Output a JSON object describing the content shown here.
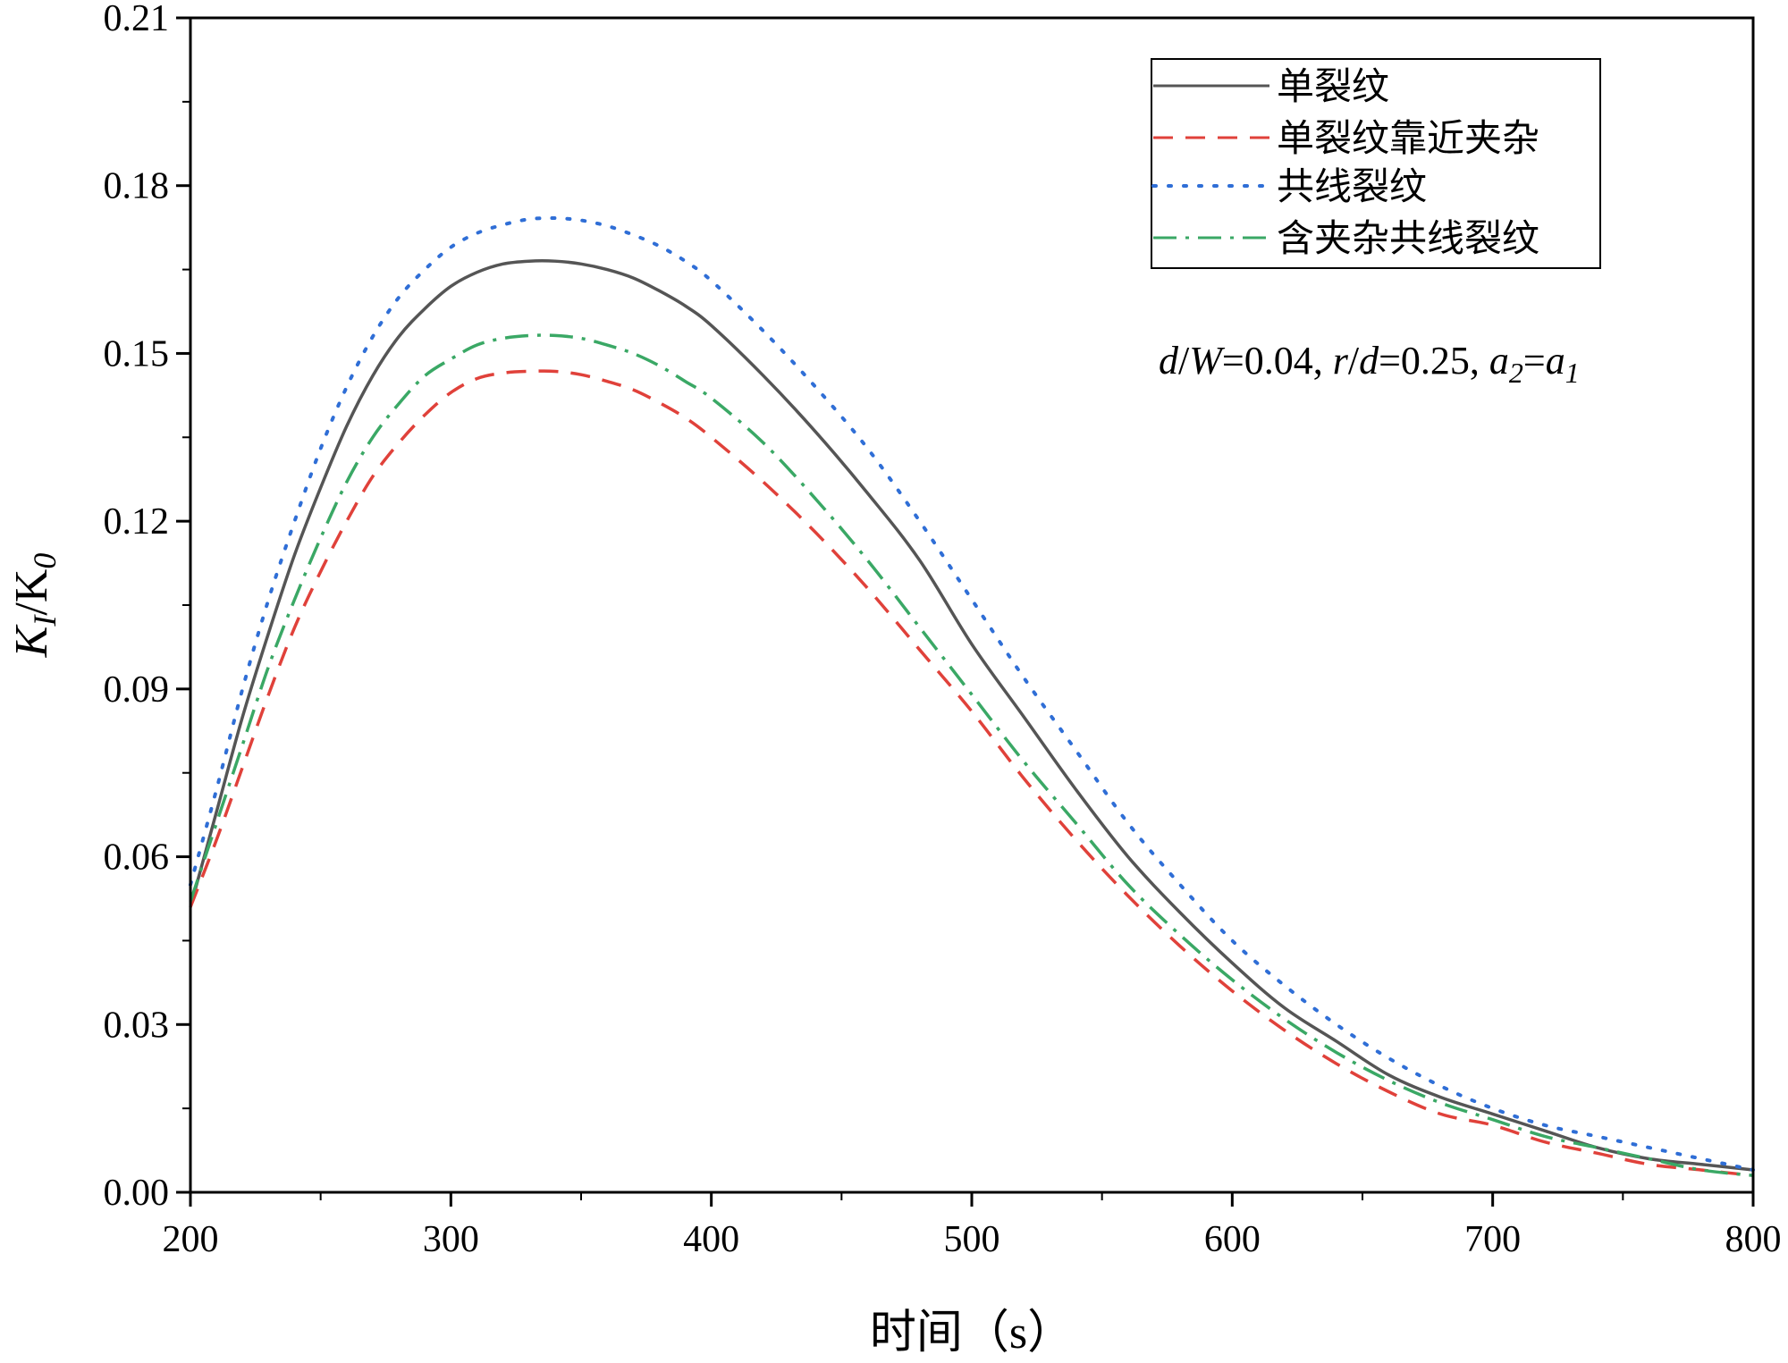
{
  "chart_data": {
    "type": "line",
    "title": "",
    "xlabel": "时间（s）",
    "ylabel": "K_I/K_0",
    "xlim": [
      200,
      800
    ],
    "ylim": [
      0,
      0.21
    ],
    "xticks": [
      200,
      300,
      400,
      500,
      600,
      700,
      800
    ],
    "xtick_labels": [
      "200",
      "300",
      "400",
      "500",
      "600",
      "700",
      "800"
    ],
    "yticks": [
      0,
      0.03,
      0.06,
      0.09,
      0.12,
      0.15,
      0.18,
      0.21
    ],
    "ytick_labels": [
      "0.00",
      "0.03",
      "0.06",
      "0.09",
      "0.12",
      "0.15",
      "0.18",
      "0.21"
    ],
    "grid": false,
    "legend_position": "top-right",
    "annotation": {
      "d": "d",
      "W": "W",
      "v1": "=0.04, ",
      "r": "r",
      "d2": "d",
      "v2": "=0.25, ",
      "a": "a",
      "sub2": "2",
      "eq": "=",
      "a2": "a",
      "sub1": "1"
    },
    "x": [
      200,
      210,
      220,
      230,
      240,
      250,
      260,
      270,
      280,
      290,
      300,
      310,
      320,
      330,
      340,
      350,
      360,
      370,
      380,
      390,
      400,
      420,
      440,
      460,
      480,
      500,
      520,
      540,
      560,
      580,
      600,
      620,
      640,
      660,
      680,
      700,
      720,
      740,
      760,
      780,
      800
    ],
    "series": [
      {
        "name": "单裂纹",
        "color": "#555555",
        "dash": "solid",
        "values": [
          0.051,
          0.068,
          0.085,
          0.1,
          0.114,
          0.126,
          0.137,
          0.146,
          0.153,
          0.158,
          0.162,
          0.1645,
          0.166,
          0.1665,
          0.1665,
          0.166,
          0.165,
          0.1635,
          0.1612,
          0.1585,
          0.155,
          0.146,
          0.136,
          0.125,
          0.113,
          0.098,
          0.085,
          0.072,
          0.06,
          0.05,
          0.041,
          0.033,
          0.027,
          0.021,
          0.017,
          0.014,
          0.011,
          0.008,
          0.006,
          0.005,
          0.004
        ]
      },
      {
        "name": "单裂纹靠近夹杂",
        "color": "#e0413a",
        "dash": "dashed",
        "values": [
          0.051,
          0.063,
          0.076,
          0.089,
          0.101,
          0.111,
          0.12,
          0.128,
          0.134,
          0.139,
          0.143,
          0.1455,
          0.1465,
          0.1468,
          0.1468,
          0.1462,
          0.145,
          0.1435,
          0.1412,
          0.1385,
          0.135,
          0.127,
          0.118,
          0.108,
          0.097,
          0.086,
          0.074,
          0.063,
          0.053,
          0.044,
          0.036,
          0.029,
          0.023,
          0.018,
          0.014,
          0.012,
          0.009,
          0.007,
          0.005,
          0.004,
          0.003
        ]
      },
      {
        "name": "共线裂纹",
        "color": "#2f6ed6",
        "dash": "dotted",
        "values": [
          0.055,
          0.072,
          0.09,
          0.106,
          0.12,
          0.133,
          0.144,
          0.153,
          0.16,
          0.165,
          0.169,
          0.1715,
          0.173,
          0.174,
          0.1742,
          0.1738,
          0.1728,
          0.1712,
          0.1692,
          0.1665,
          0.163,
          0.154,
          0.144,
          0.133,
          0.12,
          0.106,
          0.092,
          0.079,
          0.066,
          0.055,
          0.045,
          0.037,
          0.03,
          0.024,
          0.019,
          0.015,
          0.012,
          0.01,
          0.008,
          0.006,
          0.004
        ]
      },
      {
        "name": "含夹杂共线裂纹",
        "color": "#3aa865",
        "dash": "dashdot",
        "values": [
          0.052,
          0.066,
          0.08,
          0.094,
          0.106,
          0.117,
          0.127,
          0.135,
          0.141,
          0.146,
          0.149,
          0.1515,
          0.1527,
          0.1532,
          0.1532,
          0.1527,
          0.1515,
          0.15,
          0.1478,
          0.145,
          0.142,
          0.134,
          0.124,
          0.113,
          0.101,
          0.089,
          0.077,
          0.066,
          0.055,
          0.046,
          0.038,
          0.031,
          0.025,
          0.02,
          0.016,
          0.013,
          0.01,
          0.008,
          0.006,
          0.004,
          0.003
        ]
      }
    ]
  }
}
